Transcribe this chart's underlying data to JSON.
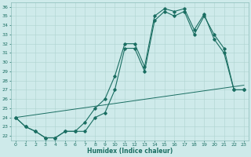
{
  "xlabel": "Humidex (Indice chaleur)",
  "bg_color": "#ceeaea",
  "line_color": "#1a6e62",
  "grid_color": "#aed4d0",
  "xlim": [
    -0.5,
    23.5
  ],
  "ylim": [
    21.5,
    36.5
  ],
  "ytick_labels": [
    "22",
    "23",
    "24",
    "25",
    "26",
    "27",
    "28",
    "29",
    "30",
    "31",
    "32",
    "33",
    "34",
    "35",
    "36"
  ],
  "ytick_vals": [
    22,
    23,
    24,
    25,
    26,
    27,
    28,
    29,
    30,
    31,
    32,
    33,
    34,
    35,
    36
  ],
  "xtick_vals": [
    0,
    1,
    2,
    3,
    4,
    5,
    6,
    7,
    8,
    9,
    10,
    11,
    12,
    13,
    14,
    15,
    16,
    17,
    18,
    19,
    20,
    21,
    22,
    23
  ],
  "line1_x": [
    0,
    1,
    2,
    3,
    4,
    5,
    6,
    7,
    8,
    9,
    10,
    11,
    12,
    13,
    14,
    15,
    16,
    17,
    18,
    19,
    20,
    21,
    22,
    23
  ],
  "line1_y": [
    24.0,
    23.0,
    22.5,
    21.8,
    21.8,
    22.5,
    22.5,
    23.5,
    25.0,
    26.0,
    28.5,
    32.0,
    32.0,
    29.5,
    35.0,
    35.8,
    35.5,
    35.8,
    33.5,
    35.2,
    32.5,
    31.0,
    27.0,
    27.0
  ],
  "line2_x": [
    0,
    1,
    2,
    3,
    4,
    5,
    6,
    7,
    8,
    9,
    10,
    11,
    12,
    13,
    14,
    15,
    16,
    17,
    18,
    19,
    20,
    21,
    22,
    23
  ],
  "line2_y": [
    24.0,
    23.0,
    22.5,
    21.8,
    21.8,
    22.5,
    22.5,
    22.5,
    24.0,
    24.5,
    27.0,
    31.5,
    31.5,
    29.0,
    34.5,
    35.5,
    35.0,
    35.5,
    33.0,
    35.0,
    33.0,
    31.5,
    27.0,
    27.0
  ],
  "line3_x": [
    0,
    23
  ],
  "line3_y": [
    24.0,
    27.5
  ]
}
